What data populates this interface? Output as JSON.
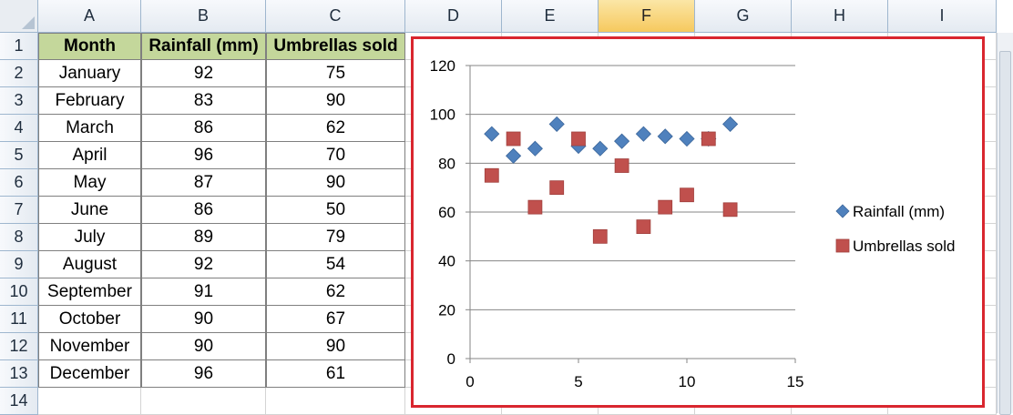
{
  "columns": [
    "A",
    "B",
    "C",
    "D",
    "E",
    "F",
    "G",
    "H",
    "I"
  ],
  "selected_column": "F",
  "rows": [
    "1",
    "2",
    "3",
    "4",
    "5",
    "6",
    "7",
    "8",
    "9",
    "10",
    "11",
    "12",
    "13",
    "14"
  ],
  "table": {
    "headers": [
      "Month",
      "Rainfall (mm)",
      "Umbrellas sold"
    ],
    "rows": [
      [
        "January",
        "92",
        "75"
      ],
      [
        "February",
        "83",
        "90"
      ],
      [
        "March",
        "86",
        "62"
      ],
      [
        "April",
        "96",
        "70"
      ],
      [
        "May",
        "87",
        "90"
      ],
      [
        "June",
        "86",
        "50"
      ],
      [
        "July",
        "89",
        "79"
      ],
      [
        "August",
        "92",
        "54"
      ],
      [
        "September",
        "91",
        "62"
      ],
      [
        "October",
        "90",
        "67"
      ],
      [
        "November",
        "90",
        "90"
      ],
      [
        "December",
        "96",
        "61"
      ]
    ]
  },
  "chart_data": {
    "type": "scatter",
    "title": "",
    "xlabel": "",
    "ylabel": "",
    "xlim": [
      0,
      15
    ],
    "ylim": [
      0,
      120
    ],
    "x_ticks": [
      0,
      5,
      10,
      15
    ],
    "y_ticks": [
      0,
      20,
      40,
      60,
      80,
      100,
      120
    ],
    "grid": "horizontal",
    "legend_position": "right",
    "series": [
      {
        "name": "Rainfall (mm)",
        "marker": "diamond",
        "color": "#4f81bd",
        "x": [
          1,
          2,
          3,
          4,
          5,
          6,
          7,
          8,
          9,
          10,
          11,
          12
        ],
        "y": [
          92,
          83,
          86,
          96,
          87,
          86,
          89,
          92,
          91,
          90,
          90,
          96
        ]
      },
      {
        "name": "Umbrellas sold",
        "marker": "square",
        "color": "#c0504d",
        "x": [
          1,
          2,
          3,
          4,
          5,
          6,
          7,
          8,
          9,
          10,
          11,
          12
        ],
        "y": [
          75,
          90,
          62,
          70,
          90,
          50,
          79,
          54,
          62,
          67,
          90,
          61
        ]
      }
    ]
  },
  "colors": {
    "header_fill": "#c4d79b",
    "chart_border": "#d9262f",
    "selected_header": "#f6c95e"
  }
}
